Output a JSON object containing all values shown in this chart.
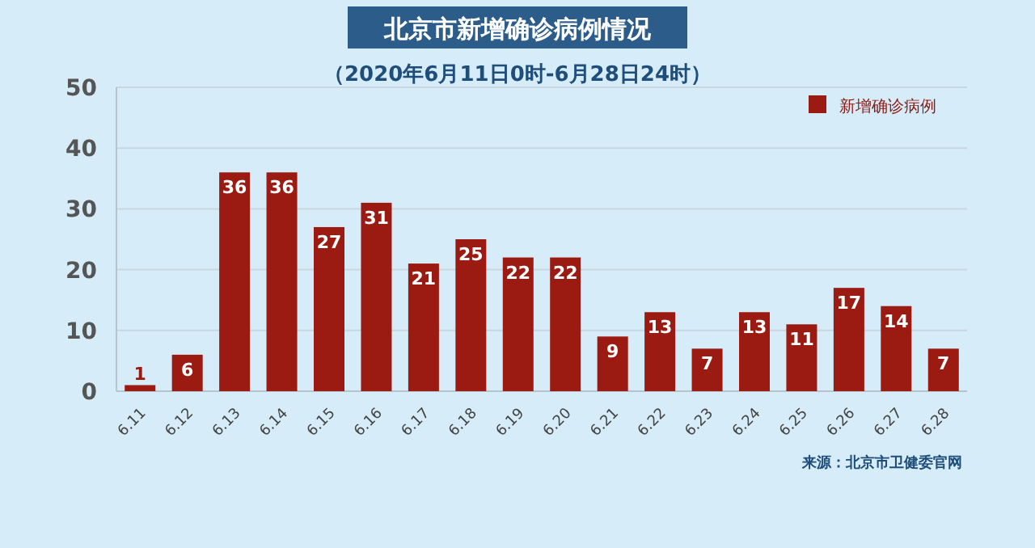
{
  "chart_data": {
    "type": "bar",
    "title": "北京市新增确诊病例情况",
    "subtitle": "（2020年6月11日0时-6月28日24时）",
    "categories": [
      "6.11",
      "6.12",
      "6.13",
      "6.14",
      "6.15",
      "6.16",
      "6.17",
      "6.18",
      "6.19",
      "6.20",
      "6.21",
      "6.22",
      "6.23",
      "6.24",
      "6.25",
      "6.26",
      "6.27",
      "6.28"
    ],
    "series": [
      {
        "name": "新增确诊病例",
        "color": "#9b1b12",
        "values": [
          1,
          6,
          36,
          36,
          27,
          31,
          21,
          25,
          22,
          22,
          9,
          13,
          7,
          13,
          11,
          17,
          14,
          7
        ]
      }
    ],
    "ylim": [
      0,
      50
    ],
    "yticks": [
      0,
      10,
      20,
      30,
      40,
      50
    ],
    "grid": "y",
    "legend": "top right",
    "data_labels": true,
    "annotations": [
      "来源：北京市卫健委官网"
    ]
  }
}
